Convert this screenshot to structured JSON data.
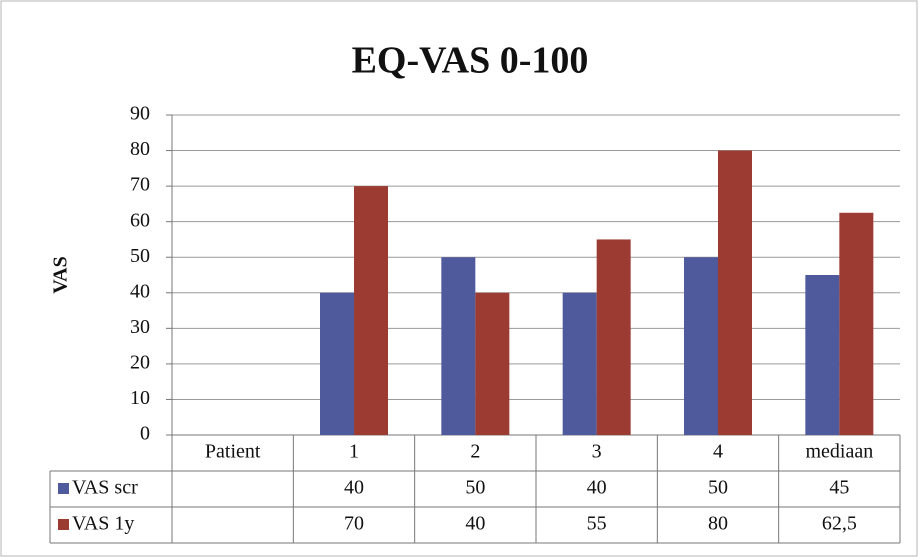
{
  "chart_data": {
    "type": "bar",
    "title": "EQ-VAS 0-100",
    "y_label": "VAS",
    "categories": [
      "Patient",
      "1",
      "2",
      "3",
      "4",
      "mediaan"
    ],
    "series": [
      {
        "name": "VAS scr",
        "color": "#4f5a9c",
        "values": [
          null,
          40,
          50,
          40,
          50,
          45
        ]
      },
      {
        "name": "VAS 1y",
        "color": "#9c3b31",
        "values": [
          null,
          70,
          40,
          55,
          80,
          62.5
        ],
        "value_labels": [
          null,
          "70",
          "40",
          "55",
          "80",
          "62,5"
        ]
      }
    ],
    "ylim": [
      0,
      90
    ],
    "yticks": [
      0,
      10,
      20,
      30,
      40,
      50,
      60,
      70,
      80,
      90
    ],
    "grid": true
  }
}
